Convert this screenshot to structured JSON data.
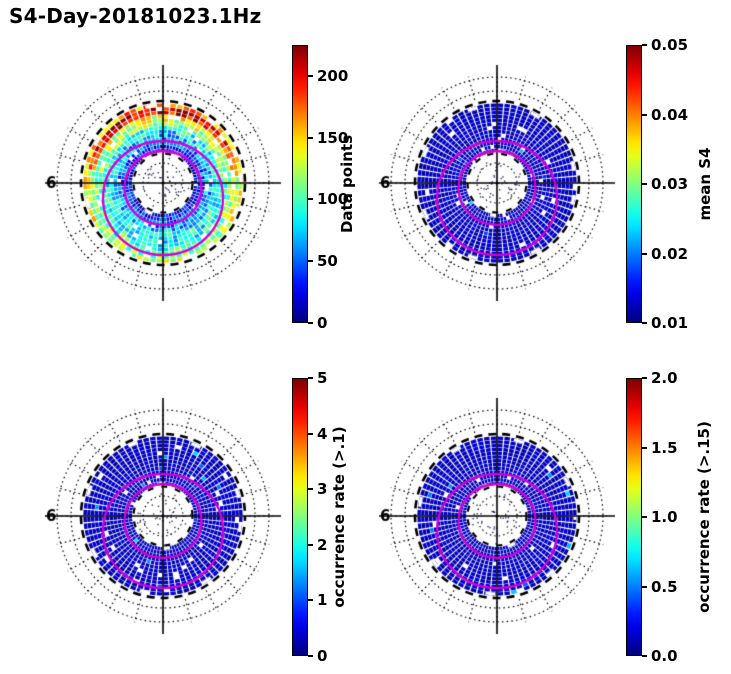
{
  "chart_data": {
    "type": "heatmap",
    "subtype": "polar-grid-2x2",
    "title": "S4-Day-20181023.1Hz",
    "mlt_label": "6",
    "colormap": "jet",
    "contour_color": "#d400d4",
    "grid": "dotted polar graticule with dashed latitude circles and crosshair axes, two magenta auroral-oval contours per panel",
    "panels": [
      {
        "id": "data-points",
        "colorbar_label": "Data points",
        "vmin": 0,
        "vmax": 225,
        "ticks": [
          0,
          50,
          100,
          150,
          200
        ],
        "tick_labels": [
          "0",
          "50",
          "100",
          "150",
          "200"
        ],
        "style": "multicolor",
        "seed": 7,
        "summary": "Counts mostly 50-150 (cyan/green) across the annulus, a ring exceeding 200 (red/orange) near the outer top, inner rings 0-50 (dark blue)."
      },
      {
        "id": "mean-s4",
        "colorbar_label": "mean S4",
        "vmin": 0.01,
        "vmax": 0.05,
        "ticks": [
          0.01,
          0.02,
          0.03,
          0.04,
          0.05
        ],
        "tick_labels": [
          "0.01",
          "0.02",
          "0.03",
          "0.04",
          "0.05"
        ],
        "style": "low",
        "seed": 11,
        "summary": "Mean S4 near 0.01 (dark blue) almost everywhere with rare lighter speckles."
      },
      {
        "id": "occurrence-rate-gt-0.1",
        "colorbar_label": "occurrence rate (>.1)",
        "vmin": 0,
        "vmax": 5,
        "ticks": [
          0,
          1,
          2,
          3,
          4,
          5
        ],
        "tick_labels": [
          "0",
          "1",
          "2",
          "3",
          "4",
          "5"
        ],
        "style": "low",
        "seed": 13,
        "summary": "Occurrence rate near 0 (dark blue) almost everywhere."
      },
      {
        "id": "occurrence-rate-gt-0.15",
        "colorbar_label": "occurrence rate (>.15)",
        "vmin": 0.0,
        "vmax": 2.0,
        "ticks": [
          0,
          0.5,
          1,
          1.5,
          2
        ],
        "tick_labels": [
          "0.0",
          "0.5",
          "1.0",
          "1.5",
          "2.0"
        ],
        "style": "low",
        "seed": 17,
        "summary": "Occurrence rate near 0 (dark blue) almost everywhere."
      }
    ]
  }
}
